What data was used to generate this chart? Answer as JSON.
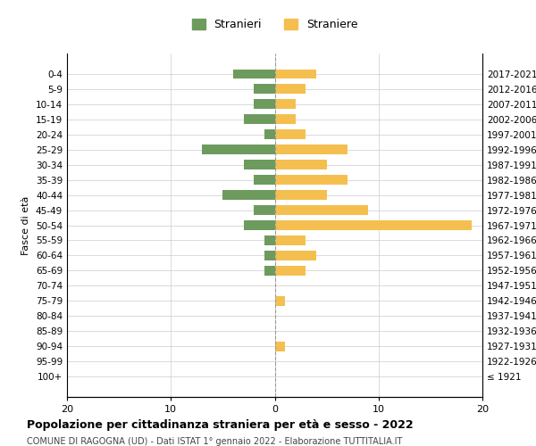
{
  "age_groups": [
    "100+",
    "95-99",
    "90-94",
    "85-89",
    "80-84",
    "75-79",
    "70-74",
    "65-69",
    "60-64",
    "55-59",
    "50-54",
    "45-49",
    "40-44",
    "35-39",
    "30-34",
    "25-29",
    "20-24",
    "15-19",
    "10-14",
    "5-9",
    "0-4"
  ],
  "birth_years": [
    "≤ 1921",
    "1922-1926",
    "1927-1931",
    "1932-1936",
    "1937-1941",
    "1942-1946",
    "1947-1951",
    "1952-1956",
    "1957-1961",
    "1962-1966",
    "1967-1971",
    "1972-1976",
    "1977-1981",
    "1982-1986",
    "1987-1991",
    "1992-1996",
    "1997-2001",
    "2002-2006",
    "2007-2011",
    "2012-2016",
    "2017-2021"
  ],
  "males": [
    0,
    0,
    0,
    0,
    0,
    0,
    0,
    1,
    1,
    1,
    3,
    2,
    5,
    2,
    3,
    7,
    1,
    3,
    2,
    2,
    4
  ],
  "females": [
    0,
    0,
    1,
    0,
    0,
    1,
    0,
    3,
    4,
    3,
    19,
    9,
    5,
    7,
    5,
    7,
    3,
    2,
    2,
    3,
    4
  ],
  "male_color": "#6d9b5e",
  "female_color": "#f5bf4f",
  "center_line_color": "#999999",
  "grid_color": "#cccccc",
  "title": "Popolazione per cittadinanza straniera per età e sesso - 2022",
  "subtitle": "COMUNE DI RAGOGNA (UD) - Dati ISTAT 1° gennaio 2022 - Elaborazione TUTTITALIA.IT",
  "ylabel_left": "Fasce di età",
  "legend_male": "Stranieri",
  "legend_female": "Straniere",
  "xlim": [
    -20,
    20
  ],
  "xticks": [
    -20,
    -10,
    0,
    10,
    20
  ],
  "xtick_labels": [
    "20",
    "10",
    "0",
    "10",
    "20"
  ],
  "bg_color": "#ffffff",
  "plot_bg_color": "#ffffff"
}
